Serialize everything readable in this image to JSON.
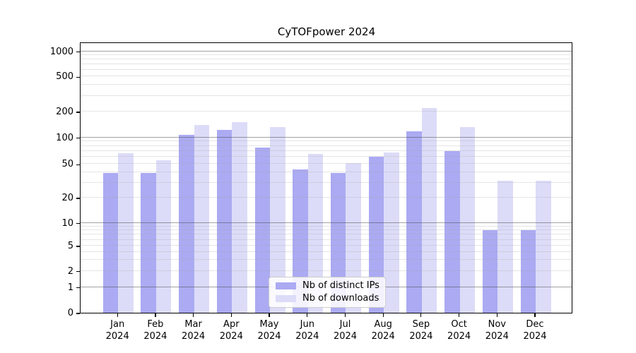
{
  "title": "CyTOFpower 2024",
  "chart_data": {
    "type": "bar",
    "title": "CyTOFpower 2024",
    "xlabel": "",
    "ylabel": "",
    "categories": [
      "Jan",
      "Feb",
      "Mar",
      "Apr",
      "May",
      "Jun",
      "Jul",
      "Aug",
      "Sep",
      "Oct",
      "Nov",
      "Dec"
    ],
    "category_year": "2024",
    "series": [
      {
        "name": "Nb of distinct IPs",
        "color": "#abaaf2",
        "values": [
          39,
          39,
          107,
          122,
          77,
          43,
          39,
          60,
          117,
          70,
          8,
          8
        ]
      },
      {
        "name": "Nb of downloads",
        "color": "#dcdcf8",
        "values": [
          66,
          55,
          139,
          150,
          133,
          65,
          51,
          67,
          220,
          132,
          32,
          32
        ]
      }
    ],
    "yscale": "symlog",
    "ytick_values": [
      0,
      1,
      2,
      5,
      10,
      20,
      50,
      100,
      200,
      500,
      1000
    ],
    "ytick_labels": [
      "0",
      "1",
      "2",
      "5",
      "10",
      "20",
      "50",
      "100",
      "200",
      "500",
      "1000"
    ],
    "ylim": [
      0,
      1300
    ],
    "grid": "horizontal major and minor log gridlines, drawn over bars",
    "legend_position": "lower center"
  },
  "legend": {
    "items": [
      {
        "label": "Nb of distinct IPs"
      },
      {
        "label": "Nb of downloads"
      }
    ]
  },
  "colors": {
    "series1": "#abaaf2",
    "series2": "#dcdcf8",
    "grid_major": "rgba(70,70,70,0.50)",
    "grid_minor": "rgba(170,170,170,0.30)",
    "spine": "#000000",
    "legend_border": "#cccccc",
    "legend_bg": "rgba(255,255,255,0.85)",
    "text": "#000000"
  }
}
